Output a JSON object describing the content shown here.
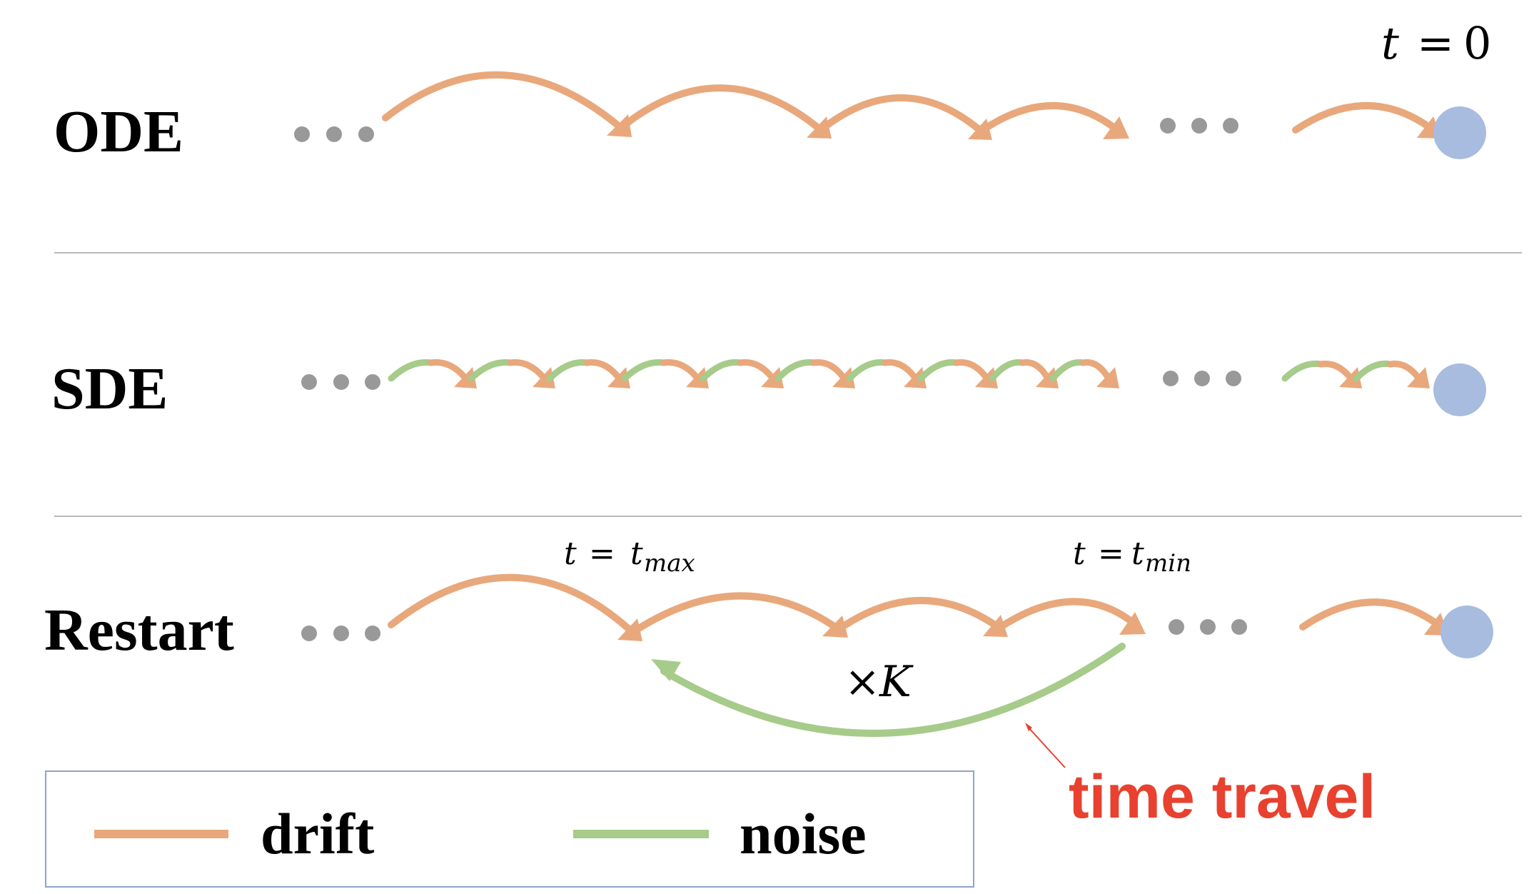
{
  "rows": {
    "ode": {
      "label": "ODE"
    },
    "sde": {
      "label": "SDE"
    },
    "restart": {
      "label": "Restart"
    }
  },
  "annotations": {
    "t_zero": {
      "lhs": "t",
      "eq": "=",
      "rhs": "0"
    },
    "t_max": {
      "lhs": "t",
      "eq": "=",
      "var": "t",
      "sub": "max"
    },
    "t_min": {
      "lhs": "t",
      "eq": "=",
      "var": "t",
      "sub": "min"
    },
    "repeat": {
      "times": "×",
      "var": "K"
    },
    "callout": "time travel"
  },
  "legend": {
    "drift": "drift",
    "noise": "noise"
  },
  "colors": {
    "drift": "#E8A87C",
    "noise": "#A6CB8A",
    "endpoint": "#A8BCE0",
    "dots": "#999999",
    "divider": "#B8B8B8",
    "callout": "#E8412F",
    "legend_border": "#8FA3C8"
  }
}
